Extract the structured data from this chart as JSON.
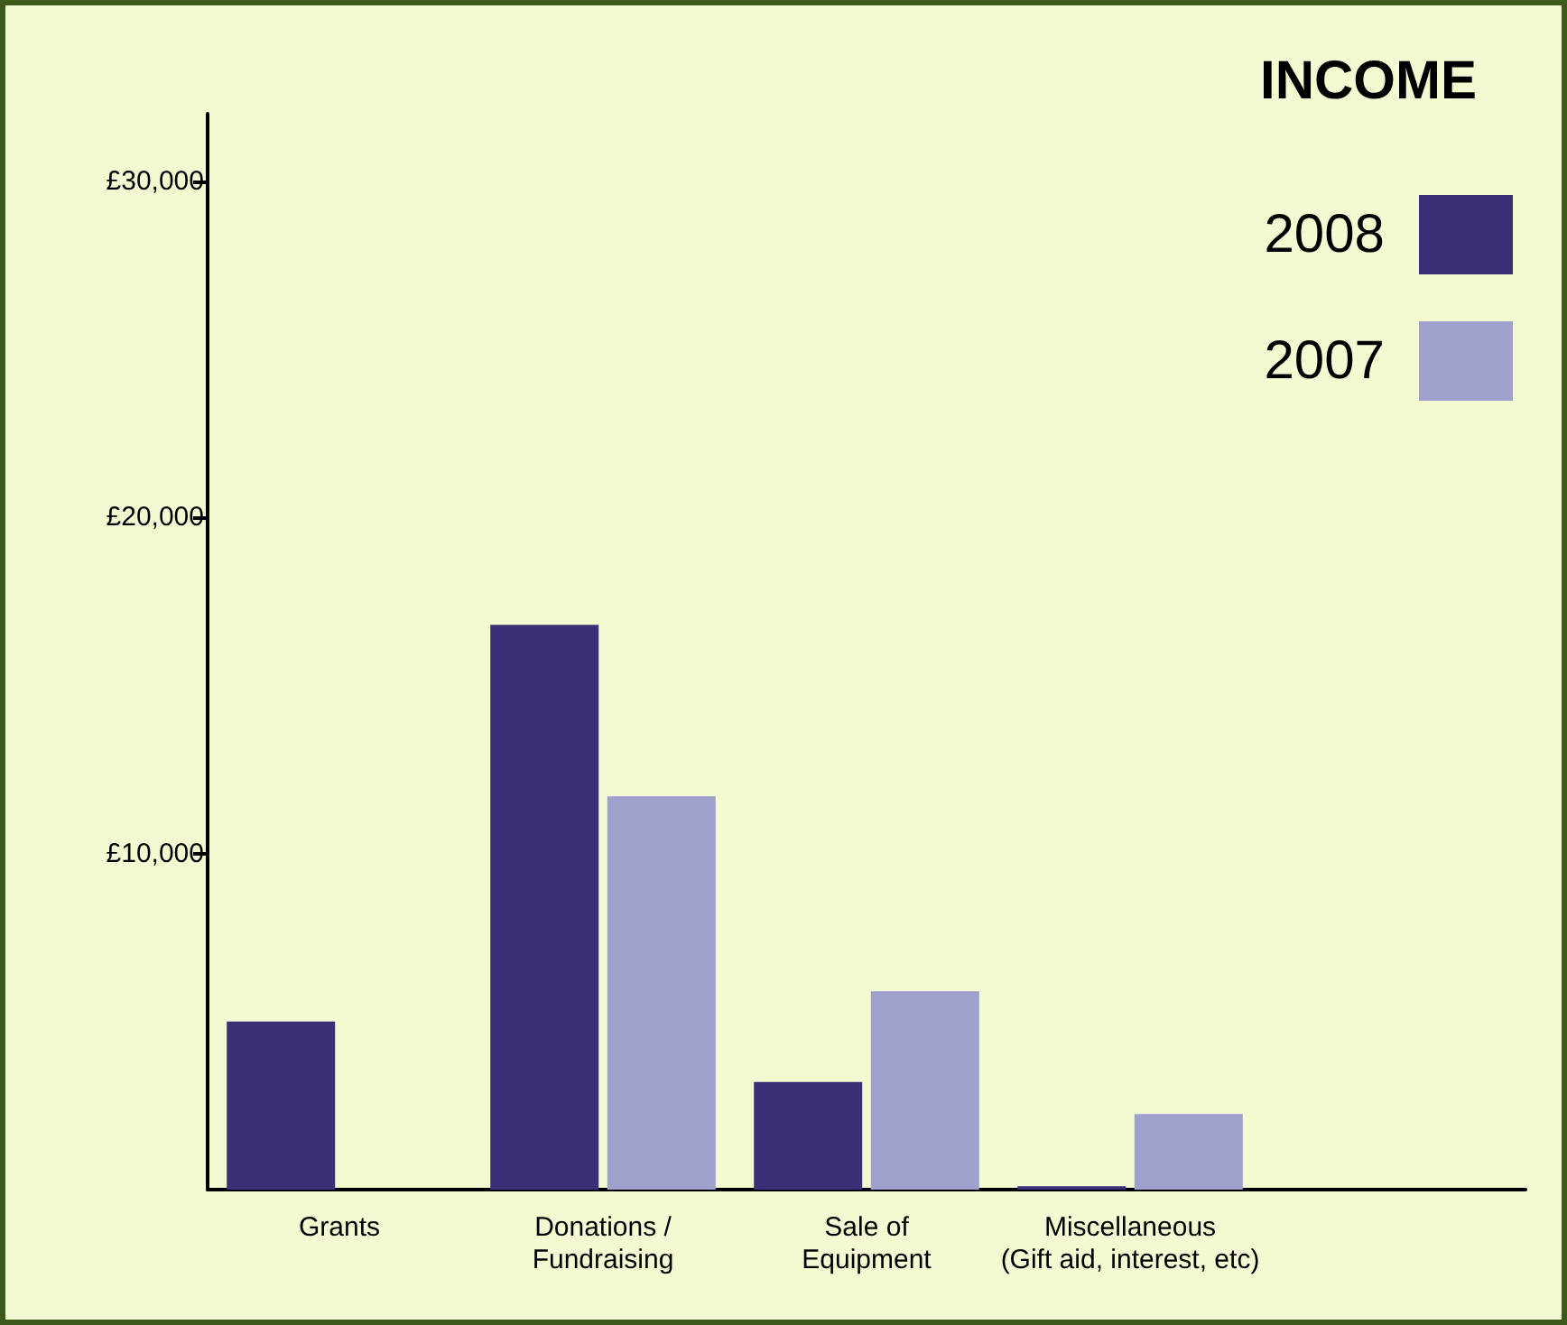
{
  "chart_data": {
    "type": "bar",
    "title": "INCOME",
    "categories": [
      "Grants",
      "Donations /\nFundraising",
      "Sale of\nEquipment",
      "Miscellaneous\n(Gift aid, interest, etc)",
      null
    ],
    "series": [
      {
        "name": "2008",
        "color": "#3b2f78",
        "values": [
          5000,
          16800,
          3200,
          100,
          null
        ]
      },
      {
        "name": "2007",
        "color": "#9fa0cc",
        "values": [
          0,
          11700,
          5900,
          2250,
          null
        ]
      }
    ],
    "ylim": [
      0,
      32000
    ],
    "yticks": [
      {
        "value": 10000,
        "label": "£10,000"
      },
      {
        "value": 20000,
        "label": "£20,000"
      },
      {
        "value": 30000,
        "label": "£30,000"
      }
    ],
    "grid": false,
    "legend": "top right"
  }
}
